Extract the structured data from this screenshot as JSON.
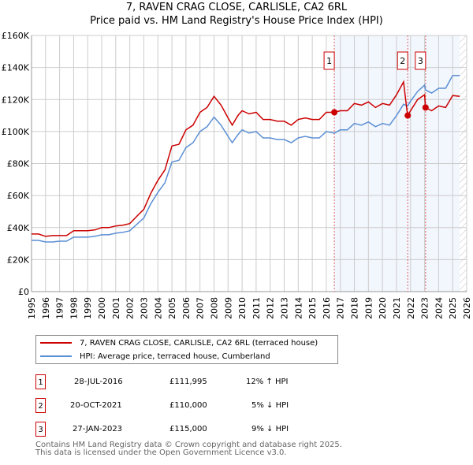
{
  "chart_data": {
    "type": "line",
    "title": "7, RAVEN CRAG CLOSE, CARLISLE, CA2 6RL",
    "subtitle": "Price paid vs. HM Land Registry's House Price Index (HPI)",
    "xlim": [
      1995,
      2026
    ],
    "ylim": [
      0,
      160000
    ],
    "x_ticks": [
      "1995",
      "1996",
      "1997",
      "1998",
      "1999",
      "2000",
      "2001",
      "2002",
      "2003",
      "2004",
      "2005",
      "2006",
      "2007",
      "2008",
      "2009",
      "2010",
      "2011",
      "2012",
      "2013",
      "2014",
      "2015",
      "2016",
      "2017",
      "2018",
      "2019",
      "2020",
      "2021",
      "2022",
      "2023",
      "2024",
      "2025",
      "2026"
    ],
    "y_ticks": [
      {
        "v": 0,
        "label": "£0"
      },
      {
        "v": 20000,
        "label": "£20K"
      },
      {
        "v": 40000,
        "label": "£40K"
      },
      {
        "v": 60000,
        "label": "£60K"
      },
      {
        "v": 80000,
        "label": "£80K"
      },
      {
        "v": 100000,
        "label": "£100K"
      },
      {
        "v": 120000,
        "label": "£120K"
      },
      {
        "v": 140000,
        "label": "£140K"
      },
      {
        "v": 160000,
        "label": "£160K"
      }
    ],
    "grid": true,
    "x": [
      1995,
      1995.5,
      1996,
      1996.5,
      1997,
      1997.5,
      1998,
      1998.5,
      1999,
      1999.5,
      2000,
      2000.5,
      2001,
      2001.5,
      2002,
      2002.5,
      2003,
      2003.5,
      2004,
      2004.5,
      2005,
      2005.5,
      2006,
      2006.5,
      2007,
      2007.5,
      2008,
      2008.5,
      2009,
      2009.3,
      2009.7,
      2010,
      2010.5,
      2011,
      2011.5,
      2012,
      2012.5,
      2013,
      2013.5,
      2014,
      2014.5,
      2015,
      2015.5,
      2016,
      2016.58,
      2017,
      2017.5,
      2018,
      2018.5,
      2019,
      2019.5,
      2020,
      2020.5,
      2021,
      2021.5,
      2021.79,
      2022,
      2022.5,
      2023,
      2023.07,
      2023.5,
      2024,
      2024.5,
      2025,
      2025.5
    ],
    "series": [
      {
        "name": "7, RAVEN CRAG CLOSE, CARLISLE, CA2 6RL (terraced house)",
        "color": "#cc0000",
        "values_k": [
          36,
          36,
          34.5,
          35,
          35,
          35,
          38,
          38,
          38,
          38.5,
          40,
          40,
          41,
          41.5,
          42.5,
          47,
          51.5,
          61.5,
          69.5,
          76,
          91,
          92,
          101,
          104,
          112,
          115,
          122,
          116.5,
          108.5,
          104,
          110,
          113,
          111,
          112,
          107.5,
          107.5,
          106.5,
          106.5,
          104,
          107.5,
          108.5,
          107.5,
          107.5,
          112,
          112,
          113,
          113,
          117.5,
          116.5,
          118.5,
          115,
          117.5,
          116.5,
          123,
          131,
          110,
          113,
          120,
          123,
          115,
          113,
          116,
          115,
          122.5,
          122
        ]
      },
      {
        "name": "HPI: Average price, terraced house, Cumberland",
        "color": "#5b8fd4",
        "values_k": [
          32,
          32,
          31,
          31,
          31.5,
          31.5,
          34,
          34,
          34,
          34.5,
          35.5,
          35.5,
          36.5,
          37,
          38,
          42,
          46,
          55,
          62,
          68,
          81,
          82,
          90,
          93,
          100,
          103,
          109,
          104,
          97,
          93,
          98,
          101,
          99,
          100,
          96,
          96,
          95,
          95,
          93,
          96,
          97,
          96,
          96,
          100,
          99,
          101,
          101,
          105,
          104,
          106,
          103,
          105,
          104,
          110,
          117,
          116,
          119,
          125,
          129,
          126,
          124,
          127,
          127,
          135,
          135
        ]
      }
    ],
    "sales": [
      {
        "id": "1",
        "x": 2016.57,
        "price": 111995,
        "date": "28-JUL-2016",
        "price_label": "£111,995",
        "hpi": "12% ↑ HPI"
      },
      {
        "id": "2",
        "x": 2021.8,
        "price": 110000,
        "date": "20-OCT-2021",
        "price_label": "£110,000",
        "hpi": "5% ↓ HPI"
      },
      {
        "id": "3",
        "x": 2023.07,
        "price": 115000,
        "date": "27-JAN-2023",
        "price_label": "£115,000",
        "hpi": "9% ↓ HPI"
      }
    ],
    "shaded_from": 2016.57,
    "hatched_from": 2025.5
  },
  "footer": {
    "line1": "Contains HM Land Registry data © Crown copyright and database right 2025.",
    "line2": "This data is licensed under the Open Government Licence v3.0."
  }
}
